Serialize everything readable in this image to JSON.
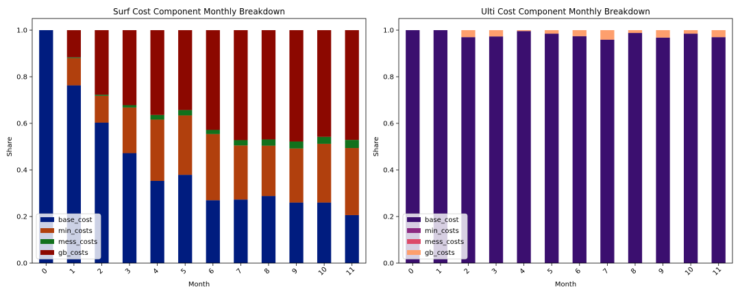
{
  "chart_data": [
    {
      "type": "bar",
      "stacked": true,
      "title": "Surf Cost Component Monthly Breakdown",
      "xlabel": "Month",
      "ylabel": "Share",
      "ylim": [
        0,
        1.0
      ],
      "yticks": [
        "0.0",
        "0.2",
        "0.4",
        "0.6",
        "0.8",
        "1.0"
      ],
      "categories": [
        "0",
        "1",
        "2",
        "3",
        "4",
        "5",
        "6",
        "7",
        "8",
        "9",
        "10",
        "11"
      ],
      "legend_position": "lower-left",
      "series": [
        {
          "name": "base_cost",
          "color": "#001c7f",
          "values": [
            1.0,
            0.763,
            0.603,
            0.472,
            0.353,
            0.379,
            0.27,
            0.273,
            0.288,
            0.26,
            0.26,
            0.206
          ]
        },
        {
          "name": "min_costs",
          "color": "#b1400d",
          "values": [
            0.0,
            0.117,
            0.115,
            0.196,
            0.263,
            0.255,
            0.284,
            0.232,
            0.216,
            0.232,
            0.252,
            0.288
          ]
        },
        {
          "name": "mess_costs",
          "color": "#12711c",
          "values": [
            0.0,
            0.003,
            0.005,
            0.01,
            0.02,
            0.023,
            0.018,
            0.023,
            0.027,
            0.03,
            0.03,
            0.035
          ]
        },
        {
          "name": "gb_costs",
          "color": "#8c0800",
          "values": [
            0.0,
            0.117,
            0.277,
            0.322,
            0.364,
            0.343,
            0.428,
            0.472,
            0.469,
            0.478,
            0.458,
            0.471
          ]
        }
      ]
    },
    {
      "type": "bar",
      "stacked": true,
      "title": "Ulti Cost Component Monthly Breakdown",
      "xlabel": "Month",
      "ylabel": "Share",
      "ylim": [
        0,
        1.0
      ],
      "yticks": [
        "0.0",
        "0.2",
        "0.4",
        "0.6",
        "0.8",
        "1.0"
      ],
      "categories": [
        "0",
        "1",
        "2",
        "3",
        "4",
        "5",
        "6",
        "7",
        "8",
        "9",
        "10",
        "11"
      ],
      "legend_position": "lower-left",
      "series": [
        {
          "name": "base_cost",
          "color": "#3b0f6f",
          "values": [
            1.0,
            1.0,
            0.97,
            0.973,
            0.996,
            0.985,
            0.974,
            0.959,
            0.988,
            0.968,
            0.985,
            0.97
          ]
        },
        {
          "name": "min_costs",
          "color": "#8c2981",
          "values": [
            0.0,
            0.0,
            0.0,
            0.0,
            0.0,
            0.0,
            0.0,
            0.0,
            0.0,
            0.0,
            0.0,
            0.0
          ]
        },
        {
          "name": "mess_costs",
          "color": "#dd4a69",
          "values": [
            0.0,
            0.0,
            0.0,
            0.0,
            0.0,
            0.0,
            0.0,
            0.0,
            0.0,
            0.0,
            0.0,
            0.0
          ]
        },
        {
          "name": "gb_costs",
          "color": "#fe9f6d",
          "values": [
            0.0,
            0.0,
            0.03,
            0.027,
            0.004,
            0.015,
            0.026,
            0.041,
            0.012,
            0.032,
            0.015,
            0.03
          ]
        }
      ]
    }
  ]
}
